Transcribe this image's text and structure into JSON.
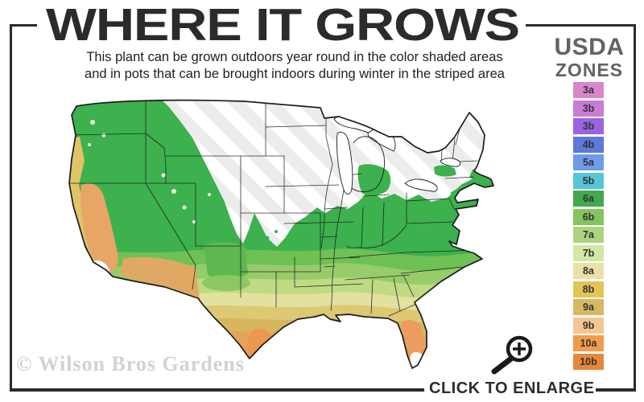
{
  "title": "WHERE IT GROWS",
  "subtitle": {
    "line1": "This plant can be grown outdoors year round in the color shaded areas",
    "line2": "and in pots that can be brought indoors during winter in the striped area"
  },
  "legend": {
    "heading_line1": "USDA",
    "heading_line2": "ZONES",
    "zones": [
      {
        "label": "3a",
        "color": "#d887cb"
      },
      {
        "label": "3b",
        "color": "#ca7bd5"
      },
      {
        "label": "3b",
        "color": "#9a63e2"
      },
      {
        "label": "4b",
        "color": "#5b79d8"
      },
      {
        "label": "5a",
        "color": "#6f9ce9"
      },
      {
        "label": "5b",
        "color": "#55c6d9"
      },
      {
        "label": "6a",
        "color": "#41aa4d"
      },
      {
        "label": "6b",
        "color": "#84c35f"
      },
      {
        "label": "7a",
        "color": "#abd47d"
      },
      {
        "label": "7b",
        "color": "#d3e7a4"
      },
      {
        "label": "8a",
        "color": "#ebe0a5"
      },
      {
        "label": "8b",
        "color": "#e2c457"
      },
      {
        "label": "9a",
        "color": "#d8b961"
      },
      {
        "label": "9b",
        "color": "#f5c594"
      },
      {
        "label": "10a",
        "color": "#f09d4b"
      },
      {
        "label": "10b",
        "color": "#e5873d"
      }
    ]
  },
  "map": {
    "watermark": "© Wilson Bros Gardens",
    "region": "United States"
  },
  "footer": {
    "enlarge_label": "CLICK TO ENLARGE"
  },
  "icons": {
    "enlarge": "magnifier-plus-icon"
  },
  "colors": {
    "frame": "#2b2b2b",
    "title_text": "#2b2b2b",
    "legend_heading": "#636363",
    "watermark": "#d2d2d2"
  }
}
